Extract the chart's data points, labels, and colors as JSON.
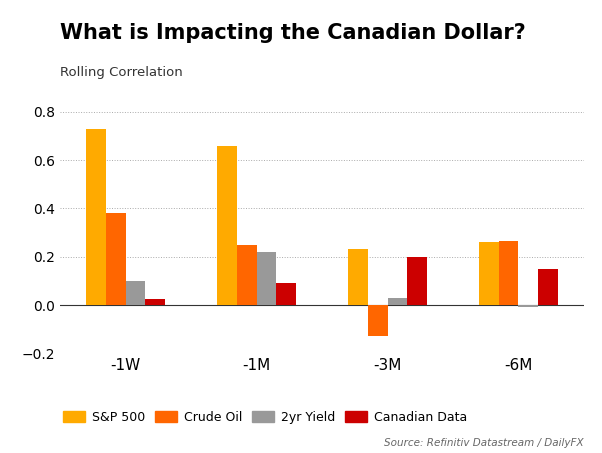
{
  "title": "What is Impacting the Canadian Dollar?",
  "subtitle": "Rolling Correlation",
  "categories": [
    "-1W",
    "-1M",
    "-3M",
    "-6M"
  ],
  "series": {
    "S&P 500": [
      0.73,
      0.66,
      0.23,
      0.26
    ],
    "Crude Oil": [
      0.38,
      0.25,
      -0.13,
      0.265
    ],
    "2yr Yield": [
      0.1,
      0.22,
      0.03,
      -0.01
    ],
    "Canadian Data": [
      0.025,
      0.09,
      0.2,
      0.15
    ]
  },
  "colors": {
    "S&P 500": "#FFAA00",
    "Crude Oil": "#FF6600",
    "2yr Yield": "#999999",
    "Canadian Data": "#CC0000"
  },
  "ylim": [
    -0.2,
    0.85
  ],
  "yticks": [
    -0.2,
    0.0,
    0.2,
    0.4,
    0.6,
    0.8
  ],
  "source_text": "Source: Refinitiv Datastream / DailyFX",
  "background_color": "#ffffff",
  "grid_color": "#aaaaaa"
}
